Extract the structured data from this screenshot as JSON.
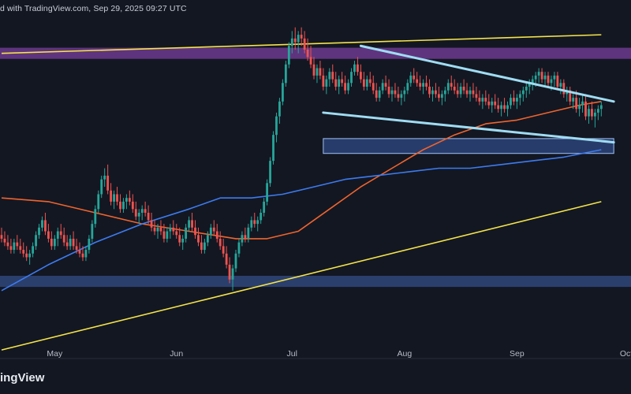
{
  "header_text": "d with TradingView.com, Sep 29, 2025 09:27 UTC",
  "brand_text": "ingView",
  "colors": {
    "background": "#131722",
    "candle_up": "#26a69a",
    "candle_down": "#ef5350",
    "ma_fast": "#f0642d",
    "ma_slow": "#3d7bf0",
    "trend_line": "#f5e44a",
    "wedge_line": "#9fdcf2",
    "zone_top": "#7a3f9e",
    "zone_mid": "#3a5ba8",
    "zone_low": "#3c5aa0"
  },
  "chart_data": {
    "type": "candlestick",
    "title": "",
    "xlabel": "",
    "ylabel": "",
    "x_ticks": [
      "May",
      "Jun",
      "Jul",
      "Aug",
      "Sep",
      "Oct"
    ],
    "x_tick_index": [
      17,
      56,
      93,
      129,
      165,
      200
    ],
    "ylim": [
      75,
      160
    ],
    "grid": false,
    "candles": [
      [
        0,
        103,
        105,
        101,
        102
      ],
      [
        1,
        102,
        104,
        100,
        101
      ],
      [
        2,
        101,
        103,
        99,
        100
      ],
      [
        3,
        100,
        102,
        98,
        99
      ],
      [
        4,
        99,
        102,
        98,
        101
      ],
      [
        5,
        101,
        103,
        99,
        100
      ],
      [
        6,
        100,
        102,
        98,
        99
      ],
      [
        7,
        99,
        101,
        97,
        98
      ],
      [
        8,
        98,
        100,
        96,
        97
      ],
      [
        9,
        97,
        99,
        95,
        98
      ],
      [
        10,
        98,
        101,
        97,
        100
      ],
      [
        11,
        100,
        104,
        99,
        103
      ],
      [
        12,
        103,
        106,
        102,
        105
      ],
      [
        13,
        105,
        108,
        104,
        107
      ],
      [
        14,
        107,
        109,
        103,
        104
      ],
      [
        15,
        104,
        106,
        101,
        102
      ],
      [
        16,
        102,
        104,
        99,
        100
      ],
      [
        17,
        100,
        103,
        99,
        102
      ],
      [
        18,
        102,
        105,
        100,
        104
      ],
      [
        19,
        104,
        106,
        102,
        103
      ],
      [
        20,
        103,
        105,
        100,
        101
      ],
      [
        21,
        101,
        103,
        99,
        100
      ],
      [
        22,
        100,
        103,
        99,
        102
      ],
      [
        23,
        102,
        104,
        99,
        100
      ],
      [
        24,
        100,
        102,
        98,
        99
      ],
      [
        25,
        99,
        101,
        97,
        98
      ],
      [
        26,
        98,
        100,
        96,
        97
      ],
      [
        27,
        97,
        100,
        96,
        99
      ],
      [
        28,
        99,
        103,
        98,
        102
      ],
      [
        29,
        102,
        107,
        101,
        106
      ],
      [
        30,
        106,
        111,
        105,
        110
      ],
      [
        31,
        110,
        115,
        109,
        114
      ],
      [
        32,
        114,
        119,
        113,
        118
      ],
      [
        33,
        118,
        121,
        116,
        119
      ],
      [
        34,
        119,
        122,
        114,
        115
      ],
      [
        35,
        115,
        117,
        111,
        112
      ],
      [
        36,
        112,
        115,
        110,
        114
      ],
      [
        37,
        114,
        116,
        111,
        112
      ],
      [
        38,
        112,
        114,
        109,
        110
      ],
      [
        39,
        110,
        113,
        109,
        112
      ],
      [
        40,
        112,
        114,
        110,
        113
      ],
      [
        41,
        113,
        115,
        111,
        112
      ],
      [
        42,
        112,
        114,
        109,
        110
      ],
      [
        43,
        110,
        112,
        107,
        108
      ],
      [
        44,
        108,
        110,
        106,
        109
      ],
      [
        45,
        109,
        111,
        107,
        110
      ],
      [
        46,
        110,
        112,
        108,
        109
      ],
      [
        47,
        109,
        111,
        106,
        107
      ],
      [
        48,
        107,
        109,
        104,
        105
      ],
      [
        49,
        105,
        107,
        103,
        104
      ],
      [
        50,
        104,
        106,
        102,
        105
      ],
      [
        51,
        105,
        107,
        103,
        104
      ],
      [
        52,
        104,
        106,
        101,
        102
      ],
      [
        53,
        102,
        105,
        101,
        104
      ],
      [
        54,
        104,
        106,
        102,
        105
      ],
      [
        55,
        105,
        107,
        103,
        104
      ],
      [
        56,
        104,
        106,
        102,
        103
      ],
      [
        57,
        103,
        105,
        100,
        101
      ],
      [
        58,
        101,
        103,
        99,
        102
      ],
      [
        59,
        102,
        106,
        101,
        105
      ],
      [
        60,
        105,
        108,
        104,
        107
      ],
      [
        61,
        107,
        109,
        104,
        105
      ],
      [
        62,
        105,
        107,
        102,
        103
      ],
      [
        63,
        103,
        105,
        100,
        101
      ],
      [
        64,
        101,
        103,
        98,
        99
      ],
      [
        65,
        99,
        102,
        98,
        101
      ],
      [
        66,
        101,
        104,
        100,
        103
      ],
      [
        67,
        103,
        106,
        102,
        105
      ],
      [
        68,
        105,
        107,
        103,
        104
      ],
      [
        69,
        104,
        106,
        101,
        102
      ],
      [
        70,
        102,
        104,
        99,
        100
      ],
      [
        71,
        100,
        102,
        97,
        98
      ],
      [
        72,
        98,
        100,
        94,
        95
      ],
      [
        73,
        95,
        97,
        90,
        91
      ],
      [
        74,
        91,
        95,
        88,
        94
      ],
      [
        75,
        94,
        99,
        93,
        98
      ],
      [
        76,
        98,
        102,
        97,
        101
      ],
      [
        77,
        101,
        104,
        100,
        103
      ],
      [
        78,
        103,
        105,
        101,
        102
      ],
      [
        79,
        102,
        106,
        101,
        105
      ],
      [
        80,
        105,
        108,
        104,
        107
      ],
      [
        81,
        107,
        109,
        105,
        106
      ],
      [
        82,
        106,
        108,
        104,
        107
      ],
      [
        83,
        107,
        110,
        106,
        109
      ],
      [
        84,
        109,
        113,
        108,
        112
      ],
      [
        85,
        112,
        118,
        111,
        117
      ],
      [
        86,
        117,
        124,
        116,
        123
      ],
      [
        87,
        123,
        131,
        122,
        130
      ],
      [
        88,
        130,
        136,
        128,
        135
      ],
      [
        89,
        135,
        140,
        133,
        139
      ],
      [
        90,
        139,
        145,
        138,
        144
      ],
      [
        91,
        144,
        150,
        143,
        149
      ],
      [
        92,
        149,
        155,
        148,
        154
      ],
      [
        93,
        154,
        158,
        152,
        156
      ],
      [
        94,
        156,
        159,
        153,
        155
      ],
      [
        95,
        155,
        158,
        152,
        157
      ],
      [
        96,
        157,
        159,
        154,
        156
      ],
      [
        97,
        156,
        158,
        152,
        153
      ],
      [
        98,
        153,
        156,
        150,
        151
      ],
      [
        99,
        151,
        154,
        148,
        149
      ],
      [
        100,
        149,
        151,
        145,
        146
      ],
      [
        101,
        146,
        149,
        144,
        148
      ],
      [
        102,
        148,
        150,
        145,
        146
      ],
      [
        103,
        146,
        148,
        142,
        143
      ],
      [
        104,
        143,
        146,
        141,
        145
      ],
      [
        105,
        145,
        148,
        143,
        147
      ],
      [
        106,
        147,
        149,
        144,
        145
      ],
      [
        107,
        145,
        147,
        142,
        143
      ],
      [
        108,
        143,
        146,
        141,
        145
      ],
      [
        109,
        145,
        147,
        143,
        144
      ],
      [
        110,
        144,
        146,
        141,
        142
      ],
      [
        111,
        142,
        145,
        141,
        144
      ],
      [
        112,
        144,
        148,
        143,
        147
      ],
      [
        113,
        147,
        150,
        146,
        149
      ],
      [
        114,
        149,
        151,
        146,
        147
      ],
      [
        115,
        147,
        149,
        144,
        145
      ],
      [
        116,
        145,
        147,
        142,
        143
      ],
      [
        117,
        143,
        146,
        142,
        145
      ],
      [
        118,
        145,
        147,
        143,
        144
      ],
      [
        119,
        144,
        146,
        141,
        142
      ],
      [
        120,
        142,
        144,
        139,
        140
      ],
      [
        121,
        140,
        143,
        139,
        142
      ],
      [
        122,
        142,
        145,
        141,
        144
      ],
      [
        123,
        144,
        146,
        142,
        143
      ],
      [
        124,
        143,
        145,
        140,
        141
      ],
      [
        125,
        141,
        143,
        139,
        142
      ],
      [
        126,
        142,
        144,
        140,
        141
      ],
      [
        127,
        141,
        143,
        139,
        140
      ],
      [
        128,
        140,
        142,
        138,
        141
      ],
      [
        129,
        141,
        143,
        139,
        142
      ],
      [
        130,
        142,
        145,
        141,
        144
      ],
      [
        131,
        144,
        147,
        143,
        146
      ],
      [
        132,
        146,
        148,
        144,
        145
      ],
      [
        133,
        145,
        147,
        143,
        144
      ],
      [
        134,
        144,
        146,
        142,
        143
      ],
      [
        135,
        143,
        145,
        141,
        144
      ],
      [
        136,
        144,
        146,
        142,
        143
      ],
      [
        137,
        143,
        145,
        140,
        141
      ],
      [
        138,
        141,
        143,
        139,
        142
      ],
      [
        139,
        142,
        144,
        140,
        141
      ],
      [
        140,
        141,
        143,
        139,
        140
      ],
      [
        141,
        140,
        142,
        138,
        141
      ],
      [
        142,
        141,
        143,
        139,
        142
      ],
      [
        143,
        142,
        145,
        141,
        144
      ],
      [
        144,
        144,
        146,
        142,
        143
      ],
      [
        145,
        143,
        145,
        141,
        142
      ],
      [
        146,
        142,
        144,
        140,
        141
      ],
      [
        147,
        141,
        144,
        140,
        143
      ],
      [
        148,
        143,
        145,
        141,
        142
      ],
      [
        149,
        142,
        144,
        140,
        141
      ],
      [
        150,
        141,
        143,
        139,
        142
      ],
      [
        151,
        142,
        144,
        140,
        141
      ],
      [
        152,
        141,
        143,
        139,
        140
      ],
      [
        153,
        140,
        142,
        138,
        139
      ],
      [
        154,
        139,
        141,
        137,
        140
      ],
      [
        155,
        140,
        142,
        138,
        139
      ],
      [
        156,
        139,
        141,
        137,
        138
      ],
      [
        157,
        138,
        140,
        136,
        139
      ],
      [
        158,
        139,
        141,
        137,
        138
      ],
      [
        159,
        138,
        140,
        136,
        137
      ],
      [
        160,
        137,
        139,
        135,
        138
      ],
      [
        161,
        138,
        140,
        136,
        137
      ],
      [
        162,
        137,
        139,
        135,
        138
      ],
      [
        163,
        138,
        141,
        137,
        140
      ],
      [
        164,
        140,
        142,
        138,
        139
      ],
      [
        165,
        139,
        141,
        137,
        140
      ],
      [
        166,
        140,
        142,
        138,
        141
      ],
      [
        167,
        141,
        143,
        139,
        142
      ],
      [
        168,
        142,
        144,
        140,
        143
      ],
      [
        169,
        143,
        145,
        141,
        144
      ],
      [
        170,
        144,
        146,
        142,
        145
      ],
      [
        171,
        145,
        147,
        143,
        146
      ],
      [
        172,
        146,
        148,
        144,
        147
      ],
      [
        173,
        147,
        148,
        144,
        145
      ],
      [
        174,
        145,
        147,
        143,
        146
      ],
      [
        175,
        146,
        147,
        143,
        144
      ],
      [
        176,
        144,
        146,
        142,
        145
      ],
      [
        177,
        145,
        147,
        143,
        146
      ],
      [
        178,
        146,
        147,
        142,
        143
      ],
      [
        179,
        143,
        145,
        141,
        144
      ],
      [
        180,
        144,
        145,
        140,
        141
      ],
      [
        181,
        141,
        143,
        139,
        142
      ],
      [
        182,
        142,
        143,
        138,
        139
      ],
      [
        183,
        139,
        141,
        137,
        140
      ],
      [
        184,
        140,
        142,
        136,
        137
      ],
      [
        185,
        137,
        140,
        135,
        138
      ],
      [
        186,
        138,
        141,
        136,
        139
      ],
      [
        187,
        139,
        141,
        134,
        135
      ],
      [
        188,
        135,
        138,
        133,
        137
      ],
      [
        189,
        137,
        139,
        134,
        135
      ],
      [
        190,
        135,
        137,
        132,
        136
      ],
      [
        191,
        136,
        138,
        134,
        137
      ],
      [
        192,
        137,
        139,
        135,
        138
      ]
    ],
    "series": [
      {
        "type": "line",
        "points": [
          [
            0,
            113
          ],
          [
            15,
            112
          ],
          [
            30,
            109
          ],
          [
            45,
            106
          ],
          [
            60,
            104
          ],
          [
            75,
            102
          ],
          [
            85,
            102
          ],
          [
            95,
            104
          ],
          [
            105,
            110
          ],
          [
            115,
            116
          ],
          [
            125,
            121
          ],
          [
            135,
            126
          ],
          [
            145,
            130
          ],
          [
            155,
            133
          ],
          [
            165,
            134
          ],
          [
            175,
            136
          ],
          [
            185,
            138
          ],
          [
            192,
            139
          ]
        ]
      },
      {
        "type": "line",
        "points": [
          [
            0,
            88
          ],
          [
            15,
            95
          ],
          [
            30,
            101
          ],
          [
            45,
            106
          ],
          [
            60,
            110
          ],
          [
            70,
            113
          ],
          [
            80,
            113
          ],
          [
            90,
            114
          ],
          [
            100,
            116
          ],
          [
            110,
            118
          ],
          [
            120,
            119
          ],
          [
            130,
            120
          ],
          [
            140,
            121
          ],
          [
            150,
            121
          ],
          [
            160,
            122
          ],
          [
            170,
            123
          ],
          [
            180,
            124
          ],
          [
            192,
            126
          ]
        ]
      }
    ],
    "annotations": {
      "upper_trendline": [
        [
          0,
          152
        ],
        [
          192,
          157
        ]
      ],
      "lower_trendline": [
        [
          0,
          72
        ],
        [
          192,
          112
        ]
      ],
      "wedge_top": [
        [
          115,
          154
        ],
        [
          196,
          139
        ]
      ],
      "wedge_bottom": [
        [
          103,
          136
        ],
        [
          196,
          128
        ]
      ],
      "zones": [
        [
          153.5,
          150.5
        ],
        [
          129,
          125
        ],
        [
          92,
          89
        ]
      ]
    }
  }
}
